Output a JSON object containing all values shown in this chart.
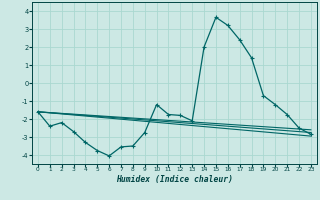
{
  "xlabel": "Humidex (Indice chaleur)",
  "background_color": "#cce8e4",
  "line_color": "#006666",
  "grid_color": "#aad8d0",
  "xlim": [
    -0.5,
    23.5
  ],
  "ylim": [
    -4.5,
    4.5
  ],
  "yticks": [
    -4,
    -3,
    -2,
    -1,
    0,
    1,
    2,
    3,
    4
  ],
  "xticks": [
    0,
    1,
    2,
    3,
    4,
    5,
    6,
    7,
    8,
    9,
    10,
    11,
    12,
    13,
    14,
    15,
    16,
    17,
    18,
    19,
    20,
    21,
    22,
    23
  ],
  "main_x": [
    0,
    1,
    2,
    3,
    4,
    5,
    6,
    7,
    8,
    9,
    10,
    11,
    12,
    13,
    14,
    15,
    16,
    17,
    18,
    19,
    20,
    21,
    22,
    23
  ],
  "main_y": [
    -1.6,
    -2.4,
    -2.2,
    -2.7,
    -3.3,
    -3.75,
    -4.05,
    -3.55,
    -3.5,
    -2.75,
    -1.2,
    -1.75,
    -1.8,
    -2.1,
    2.0,
    3.65,
    3.2,
    2.4,
    1.4,
    -0.7,
    -1.2,
    -1.75,
    -2.5,
    -2.85
  ],
  "reg_lines": [
    {
      "x0": 0,
      "x1": 23,
      "y0": -1.6,
      "y1": -2.95
    },
    {
      "x0": 0,
      "x1": 23,
      "y0": -1.6,
      "y1": -2.75
    },
    {
      "x0": 0,
      "x1": 23,
      "y0": -1.6,
      "y1": -2.6
    }
  ]
}
